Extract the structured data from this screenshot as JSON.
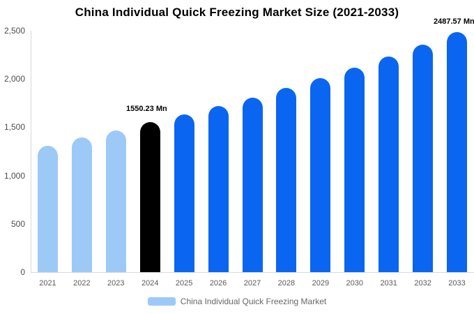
{
  "title": "China Individual Quick Freezing Market Size (2021-2033)",
  "annotations": {
    "bar_2024_label": "1550.23 Mn",
    "bar_2033_label": "2487.57 Mn"
  },
  "legend": {
    "label": "China Individual Quick Freezing Market",
    "position": "bottom",
    "swatch_color": "#9dc9f7"
  },
  "colors": {
    "historical": "#9dc9f7",
    "base_year": "#000000",
    "forecast": "#0a66f0",
    "axis_line": "#d9d9d9",
    "tick_text": "#4d4d4d",
    "x_label_text": "#595959",
    "legend_text": "#666666"
  },
  "y_axis": {
    "tick_labels": [
      "2,500",
      "2,000",
      "1,500",
      "1,000",
      "500",
      "0"
    ],
    "tick_values": [
      2500,
      2000,
      1500,
      1000,
      500,
      0
    ]
  },
  "chart_data": {
    "type": "bar",
    "title": "China Individual Quick Freezing Market Size (2021-2033)",
    "categories": [
      "2021",
      "2022",
      "2023",
      "2024",
      "2025",
      "2026",
      "2027",
      "2028",
      "2029",
      "2030",
      "2031",
      "2032",
      "2033"
    ],
    "values": [
      1310,
      1394,
      1468,
      1550.23,
      1634,
      1720,
      1809,
      1908,
      2007,
      2114,
      2230,
      2355,
      2487.57
    ],
    "value_unit": "Mn",
    "labeled_points": {
      "2024": "1550.23 Mn",
      "2033": "2487.57 Mn"
    },
    "bar_roles": [
      "historical",
      "historical",
      "historical",
      "base_year",
      "forecast",
      "forecast",
      "forecast",
      "forecast",
      "forecast",
      "forecast",
      "forecast",
      "forecast",
      "forecast"
    ],
    "xlabel": "",
    "ylabel": "",
    "ylim": [
      0,
      2500
    ],
    "grid": false,
    "legend_position": "bottom",
    "legend_entries": [
      "China Individual Quick Freezing Market"
    ]
  }
}
